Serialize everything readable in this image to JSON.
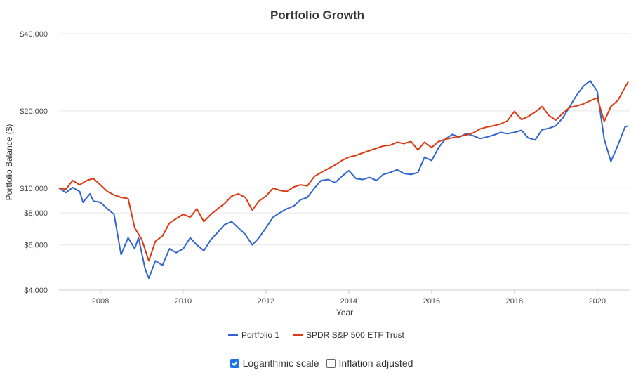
{
  "chart_data": {
    "type": "line",
    "title": "Portfolio Growth",
    "xlabel": "Year",
    "ylabel": "Portfolio Balance ($)",
    "y_scale": "log",
    "ylim": [
      4000,
      40000
    ],
    "xlim": [
      2007.0,
      2020.8
    ],
    "x_ticks": [
      2008,
      2010,
      2012,
      2014,
      2016,
      2018,
      2020
    ],
    "x_tick_labels": [
      "2008",
      "2010",
      "2012",
      "2014",
      "2016",
      "2018",
      "2020"
    ],
    "y_ticks": [
      4000,
      6000,
      8000,
      10000,
      20000,
      40000
    ],
    "y_tick_labels": [
      "$4,000",
      "$6,000",
      "$8,000",
      "$10,000",
      "$20,000",
      "$40,000"
    ],
    "grid": true,
    "legend_position": "bottom",
    "series": [
      {
        "name": "Portfolio 1",
        "color": "#3366cc",
        "points": [
          [
            2007.0,
            10000
          ],
          [
            2007.17,
            9600
          ],
          [
            2007.33,
            10050
          ],
          [
            2007.5,
            9700
          ],
          [
            2007.58,
            8800
          ],
          [
            2007.75,
            9500
          ],
          [
            2007.83,
            8900
          ],
          [
            2008.0,
            8800
          ],
          [
            2008.17,
            8300
          ],
          [
            2008.33,
            7900
          ],
          [
            2008.5,
            5500
          ],
          [
            2008.67,
            6400
          ],
          [
            2008.83,
            5800
          ],
          [
            2008.92,
            6400
          ],
          [
            2009.08,
            4850
          ],
          [
            2009.17,
            4450
          ],
          [
            2009.33,
            5200
          ],
          [
            2009.5,
            5000
          ],
          [
            2009.67,
            5800
          ],
          [
            2009.83,
            5600
          ],
          [
            2010.0,
            5800
          ],
          [
            2010.17,
            6400
          ],
          [
            2010.33,
            6000
          ],
          [
            2010.5,
            5700
          ],
          [
            2010.67,
            6300
          ],
          [
            2010.83,
            6700
          ],
          [
            2011.0,
            7200
          ],
          [
            2011.17,
            7400
          ],
          [
            2011.33,
            7000
          ],
          [
            2011.5,
            6600
          ],
          [
            2011.67,
            6000
          ],
          [
            2011.83,
            6400
          ],
          [
            2012.0,
            7000
          ],
          [
            2012.17,
            7700
          ],
          [
            2012.33,
            8000
          ],
          [
            2012.5,
            8300
          ],
          [
            2012.67,
            8500
          ],
          [
            2012.83,
            9000
          ],
          [
            2013.0,
            9200
          ],
          [
            2013.17,
            10000
          ],
          [
            2013.33,
            10700
          ],
          [
            2013.5,
            10800
          ],
          [
            2013.67,
            10500
          ],
          [
            2013.83,
            11100
          ],
          [
            2014.0,
            11700
          ],
          [
            2014.17,
            10900
          ],
          [
            2014.33,
            10800
          ],
          [
            2014.5,
            11000
          ],
          [
            2014.67,
            10700
          ],
          [
            2014.83,
            11300
          ],
          [
            2015.0,
            11500
          ],
          [
            2015.17,
            11800
          ],
          [
            2015.33,
            11400
          ],
          [
            2015.5,
            11300
          ],
          [
            2015.67,
            11500
          ],
          [
            2015.83,
            13200
          ],
          [
            2016.0,
            12800
          ],
          [
            2016.17,
            14400
          ],
          [
            2016.33,
            15500
          ],
          [
            2016.5,
            16200
          ],
          [
            2016.67,
            15800
          ],
          [
            2016.83,
            16300
          ],
          [
            2017.0,
            16000
          ],
          [
            2017.17,
            15600
          ],
          [
            2017.33,
            15800
          ],
          [
            2017.5,
            16100
          ],
          [
            2017.67,
            16500
          ],
          [
            2017.83,
            16300
          ],
          [
            2018.0,
            16500
          ],
          [
            2018.17,
            16800
          ],
          [
            2018.33,
            15700
          ],
          [
            2018.5,
            15400
          ],
          [
            2018.67,
            16900
          ],
          [
            2018.83,
            17100
          ],
          [
            2019.0,
            17500
          ],
          [
            2019.17,
            18800
          ],
          [
            2019.33,
            20700
          ],
          [
            2019.5,
            23000
          ],
          [
            2019.67,
            25000
          ],
          [
            2019.83,
            26200
          ],
          [
            2020.0,
            23900
          ],
          [
            2020.17,
            15500
          ],
          [
            2020.33,
            12700
          ],
          [
            2020.5,
            14700
          ],
          [
            2020.67,
            17300
          ],
          [
            2020.75,
            17500
          ]
        ]
      },
      {
        "name": "SPDR S&P 500 ETF Trust",
        "color": "#dc3912",
        "points": [
          [
            2007.0,
            10000
          ],
          [
            2007.17,
            9900
          ],
          [
            2007.33,
            10700
          ],
          [
            2007.5,
            10300
          ],
          [
            2007.67,
            10700
          ],
          [
            2007.83,
            10900
          ],
          [
            2008.0,
            10300
          ],
          [
            2008.17,
            9700
          ],
          [
            2008.33,
            9400
          ],
          [
            2008.5,
            9200
          ],
          [
            2008.67,
            9100
          ],
          [
            2008.83,
            7000
          ],
          [
            2009.0,
            6300
          ],
          [
            2009.17,
            5200
          ],
          [
            2009.33,
            6200
          ],
          [
            2009.5,
            6500
          ],
          [
            2009.67,
            7300
          ],
          [
            2009.83,
            7600
          ],
          [
            2010.0,
            7900
          ],
          [
            2010.17,
            7700
          ],
          [
            2010.33,
            8300
          ],
          [
            2010.5,
            7400
          ],
          [
            2010.67,
            7900
          ],
          [
            2010.83,
            8300
          ],
          [
            2011.0,
            8700
          ],
          [
            2011.17,
            9300
          ],
          [
            2011.33,
            9500
          ],
          [
            2011.5,
            9200
          ],
          [
            2011.67,
            8200
          ],
          [
            2011.83,
            8900
          ],
          [
            2012.0,
            9300
          ],
          [
            2012.17,
            10000
          ],
          [
            2012.33,
            9800
          ],
          [
            2012.5,
            9700
          ],
          [
            2012.67,
            10100
          ],
          [
            2012.83,
            10300
          ],
          [
            2013.0,
            10200
          ],
          [
            2013.17,
            11100
          ],
          [
            2013.33,
            11500
          ],
          [
            2013.5,
            11900
          ],
          [
            2013.67,
            12300
          ],
          [
            2013.83,
            12800
          ],
          [
            2014.0,
            13200
          ],
          [
            2014.17,
            13400
          ],
          [
            2014.33,
            13700
          ],
          [
            2014.5,
            14000
          ],
          [
            2014.67,
            14300
          ],
          [
            2014.83,
            14600
          ],
          [
            2015.0,
            14700
          ],
          [
            2015.17,
            15100
          ],
          [
            2015.33,
            14900
          ],
          [
            2015.5,
            15200
          ],
          [
            2015.67,
            14100
          ],
          [
            2015.83,
            15100
          ],
          [
            2016.0,
            14400
          ],
          [
            2016.17,
            15200
          ],
          [
            2016.33,
            15500
          ],
          [
            2016.5,
            15700
          ],
          [
            2016.67,
            15900
          ],
          [
            2016.83,
            16100
          ],
          [
            2017.0,
            16400
          ],
          [
            2017.17,
            17000
          ],
          [
            2017.33,
            17300
          ],
          [
            2017.5,
            17500
          ],
          [
            2017.67,
            17800
          ],
          [
            2017.83,
            18300
          ],
          [
            2018.0,
            19900
          ],
          [
            2018.17,
            18500
          ],
          [
            2018.33,
            19000
          ],
          [
            2018.5,
            19800
          ],
          [
            2018.67,
            20800
          ],
          [
            2018.83,
            19200
          ],
          [
            2019.0,
            18400
          ],
          [
            2019.17,
            19600
          ],
          [
            2019.33,
            20600
          ],
          [
            2019.5,
            20900
          ],
          [
            2019.67,
            21300
          ],
          [
            2019.83,
            21900
          ],
          [
            2020.0,
            22500
          ],
          [
            2020.17,
            18200
          ],
          [
            2020.33,
            20800
          ],
          [
            2020.5,
            22000
          ],
          [
            2020.67,
            24700
          ],
          [
            2020.75,
            26000
          ]
        ]
      }
    ]
  },
  "controls": {
    "log_scale_label": "Logarithmic scale",
    "log_scale_checked": true,
    "inflation_label": "Inflation adjusted",
    "inflation_checked": false
  }
}
